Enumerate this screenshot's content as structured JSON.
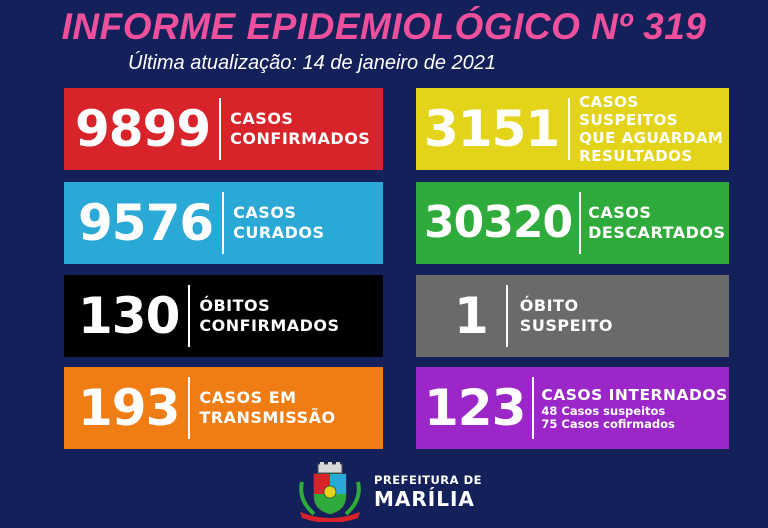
{
  "header": {
    "title": "INFORME EPIDEMIOLÓGICO Nº 319",
    "subtitle": "Última atualização: 14 de janeiro de 2021"
  },
  "cards": {
    "confirmed": {
      "value": "9899",
      "l1": "CASOS",
      "l2": "CONFIRMADOS",
      "color": "#d8232a"
    },
    "suspected": {
      "value": "3151",
      "l1": "CASOS SUSPEITOS",
      "l2": "QUE AGUARDAM",
      "l3": "RESULTADOS",
      "color": "#e3d41a"
    },
    "cured": {
      "value": "9576",
      "l1": "CASOS",
      "l2": "CURADOS",
      "color": "#2aa8d6"
    },
    "discarded": {
      "value": "30320",
      "l1": "CASOS",
      "l2": "DESCARTADOS",
      "color": "#2eab3a"
    },
    "deaths": {
      "value": "130",
      "l1": "ÓBITOS",
      "l2": "CONFIRMADOS",
      "color": "#000000"
    },
    "suspected_death": {
      "value": "1",
      "l1": "ÓBITO",
      "l2": "SUSPEITO",
      "color": "#6a6a6a"
    },
    "transmission": {
      "value": "193",
      "l1": "CASOS EM",
      "l2": "TRANSMISSÃO",
      "color": "#f07c14"
    },
    "hospitalized": {
      "value": "123",
      "l1": "CASOS INTERNADOS",
      "d1": "48 Casos suspeitos",
      "d2": "75 Casos cofirmados",
      "color": "#9b27c9"
    }
  },
  "footer": {
    "line1": "PREFEITURA DE",
    "line2": "MARÍLIA",
    "logo_icon": "city-coat-of-arms-icon"
  }
}
